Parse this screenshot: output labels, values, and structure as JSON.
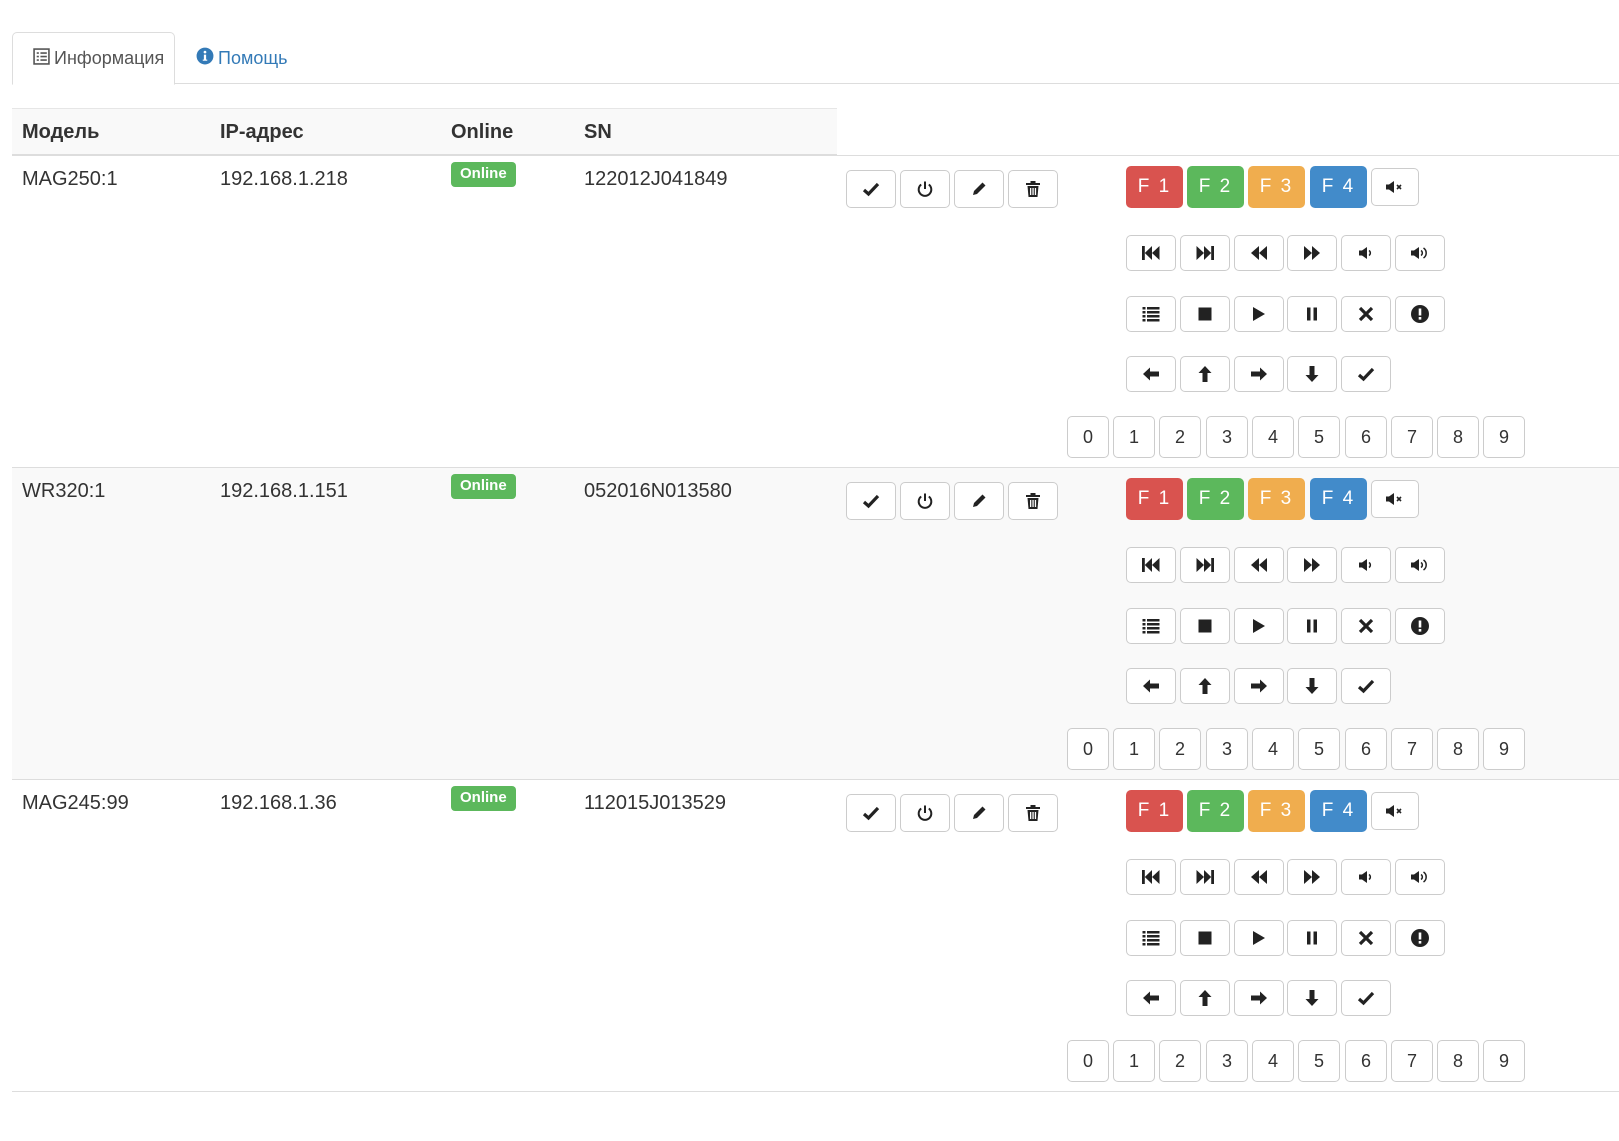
{
  "tabs": [
    {
      "label": "Информация",
      "active": true
    },
    {
      "label": "Помощь",
      "active": false
    }
  ],
  "columns": [
    "Модель",
    "IP-адрес",
    "Online",
    "SN"
  ],
  "devices": [
    {
      "model": "MAG250:1",
      "ip": "192.168.1.218",
      "status": "Online",
      "sn": "122012J041849"
    },
    {
      "model": "WR320:1",
      "ip": "192.168.1.151",
      "status": "Online",
      "sn": "052016N013580"
    },
    {
      "model": "MAG245:99",
      "ip": "192.168.1.36",
      "status": "Online",
      "sn": "112015J013529"
    }
  ],
  "function_keys": [
    "F 1",
    "F 2",
    "F 3",
    "F 4"
  ],
  "digits": [
    "0",
    "1",
    "2",
    "3",
    "4",
    "5",
    "6",
    "7",
    "8",
    "9"
  ],
  "colors": {
    "online": "#5cb85c",
    "f1": "#d9534f",
    "f2": "#5cb85c",
    "f3": "#f0ad4e",
    "f4": "#428bca",
    "link": "#337ab7"
  },
  "row_actions": [
    "check-icon",
    "power-icon",
    "pencil-icon",
    "trash-icon"
  ],
  "media_row_1": [
    "skip-back-icon",
    "skip-forward-icon",
    "rewind-icon",
    "fast-forward-icon",
    "volume-down-icon",
    "volume-up-icon"
  ],
  "media_row_2": [
    "list-icon",
    "stop-icon",
    "play-icon",
    "pause-icon",
    "close-icon",
    "info-icon"
  ],
  "nav_row": [
    "arrow-left-icon",
    "arrow-up-icon",
    "arrow-right-icon",
    "arrow-down-icon",
    "ok-check-icon"
  ],
  "mute": "mute-icon"
}
